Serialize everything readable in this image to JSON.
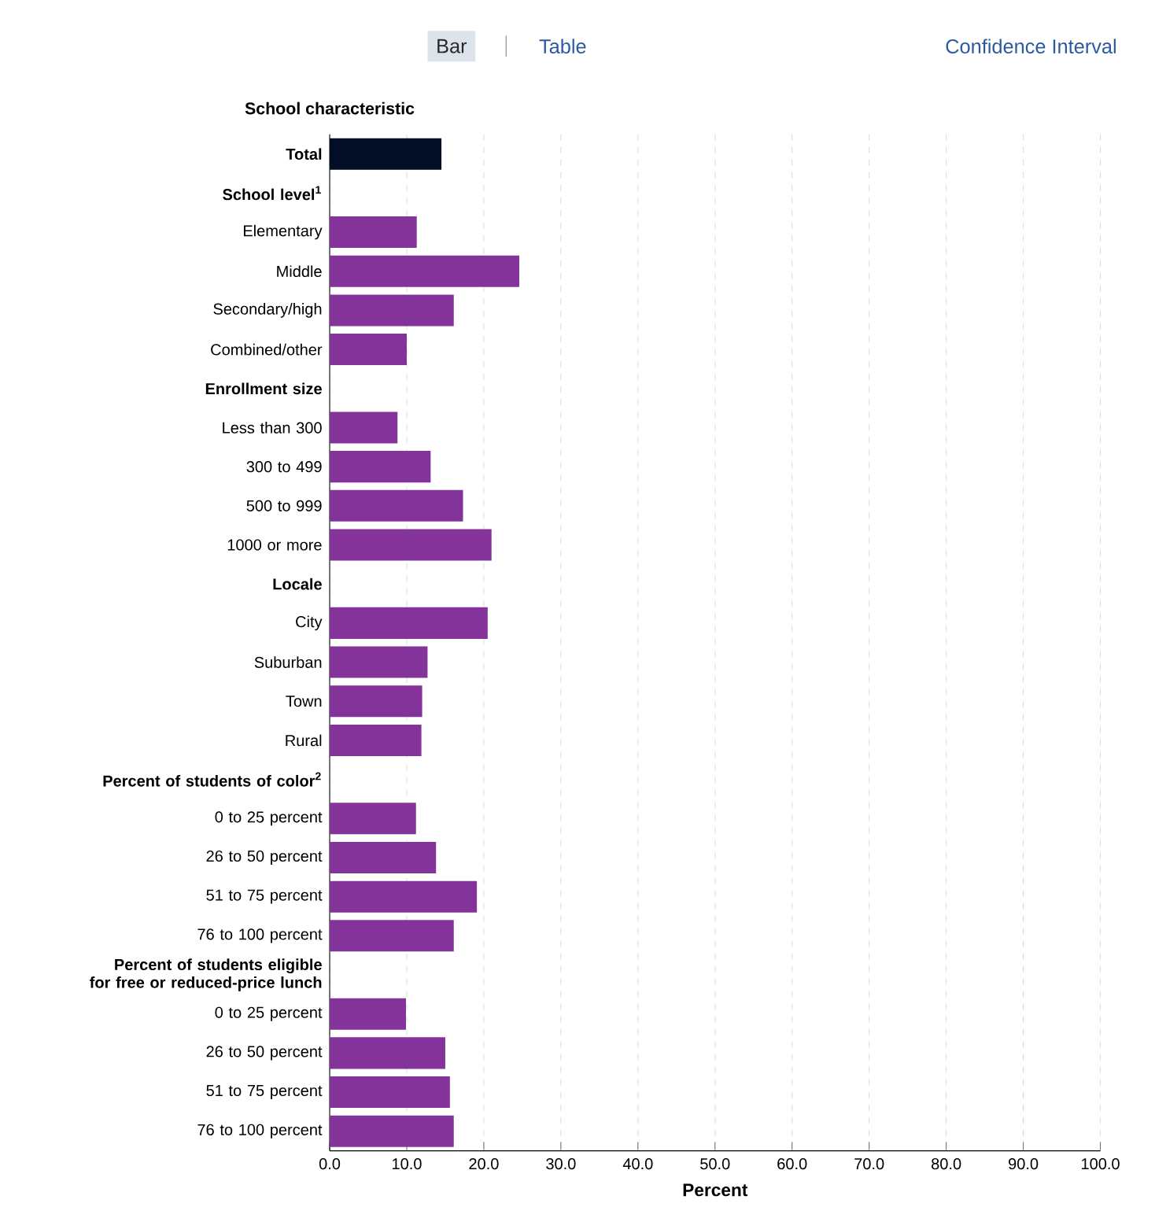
{
  "chart_data": {
    "type": "bar",
    "orientation": "horizontal",
    "ylabel": "School characteristic",
    "xlabel": "Percent",
    "annotations": [
      "Bar",
      "Table",
      "Confidence Interval"
    ],
    "categories": [
      "Total",
      "School level$^{1}$",
      "Elementary",
      "Middle",
      "Secondary/high",
      "Combined/other",
      "Enrollment size",
      "Less than 300",
      "300 to 499",
      "500 to 999",
      "1000 or more",
      "Locale",
      "City",
      "Suburban",
      "Town",
      "Rural",
      "Percent of students of color$^{2}$",
      "0 to 25 percent",
      "26 to 50 percent",
      "51 to 75 percent",
      "76 to 100 percent",
      "Percent of students eligible for free or reduced-price lunch",
      "0 to 25 percent",
      "26 to 50 percent",
      "51 to 75 percent",
      "76 to 100 percent"
    ],
    "values": [
      14.5,
      null,
      11.3,
      24.6,
      16.1,
      10.0,
      null,
      8.8,
      13.1,
      17.3,
      21.0,
      null,
      20.5,
      12.7,
      12.0,
      11.9,
      null,
      11.2,
      13.8,
      19.1,
      16.1,
      null,
      9.9,
      15.0,
      15.6,
      16.1
    ],
    "colors": [
      "#020d26",
      null,
      "#833399",
      "#833399",
      "#833399",
      "#833399",
      null,
      "#833399",
      "#833399",
      "#833399",
      "#833399",
      null,
      "#833399",
      "#833399",
      "#833399",
      "#833399",
      null,
      "#833399",
      "#833399",
      "#833399",
      "#833399",
      null,
      "#833399",
      "#833399",
      "#833399",
      "#833399"
    ],
    "xlim": [
      0,
      100
    ],
    "xticks": [
      {
        "value": 0,
        "label": "0.0"
      },
      {
        "value": 10,
        "label": "10.0"
      },
      {
        "value": 20,
        "label": "20.0"
      },
      {
        "value": 30,
        "label": "30.0"
      },
      {
        "value": 40,
        "label": "40.0"
      },
      {
        "value": 50,
        "label": "50.0"
      },
      {
        "value": 60,
        "label": "60.0"
      },
      {
        "value": 70,
        "label": "70.0"
      },
      {
        "value": 80,
        "label": "80.0"
      },
      {
        "value": 90,
        "label": "90.0"
      },
      {
        "value": 100,
        "label": "100.0"
      }
    ],
    "grid": "x"
  }
}
